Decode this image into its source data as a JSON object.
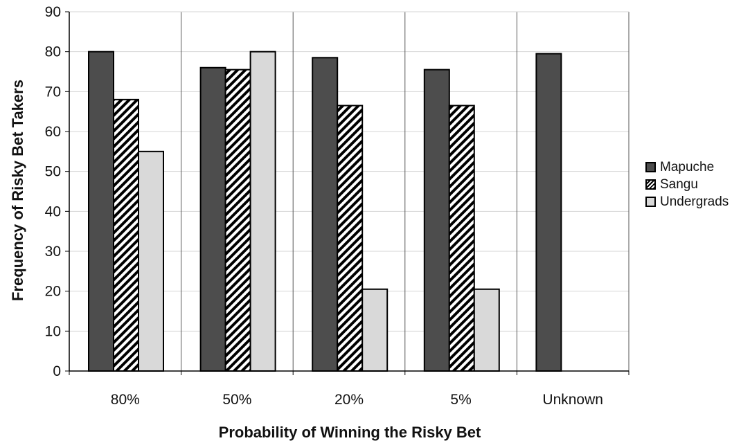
{
  "chart_data": {
    "type": "bar",
    "title": "",
    "xlabel": "Probability of Winning the Risky Bet",
    "ylabel": "Frequency of Risky Bet Takers",
    "categories": [
      "80%",
      "50%",
      "20%",
      "5%",
      "Unknown"
    ],
    "ylim": [
      0,
      90
    ],
    "yticks": [
      "0",
      "10",
      "20",
      "30",
      "40",
      "50",
      "60",
      "70",
      "80",
      "90"
    ],
    "grid": "horizontal light gray gridlines, vertical separators between categories",
    "legend_position": "right",
    "series": [
      {
        "name": "Mapuche",
        "values": [
          80,
          76,
          78.5,
          75.5,
          79.5
        ],
        "color": "#4d4d4d",
        "pattern": "solid"
      },
      {
        "name": "Sangu",
        "values": [
          68,
          75.5,
          66.5,
          66.5,
          null
        ],
        "color": "#000000",
        "pattern": "diagonal-hatch"
      },
      {
        "name": "Undergrads",
        "values": [
          55,
          80,
          20.5,
          20.5,
          null
        ],
        "color": "#d9d9d9",
        "pattern": "solid"
      }
    ]
  }
}
